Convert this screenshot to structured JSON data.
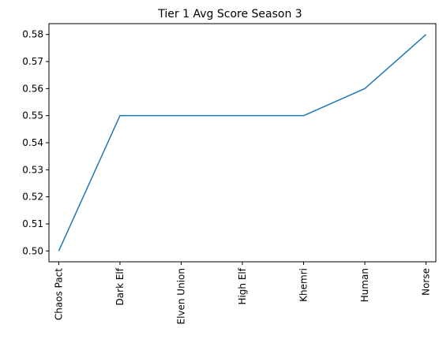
{
  "chart_data": {
    "type": "line",
    "title": "Tier 1 Avg Score Season 3",
    "xlabel": "",
    "ylabel": "",
    "categories": [
      "Chaos Pact",
      "Dark Elf",
      "Elven Union",
      "High Elf",
      "Khemri",
      "Human",
      "Norse"
    ],
    "series": [
      {
        "values": [
          0.5,
          0.55,
          0.55,
          0.55,
          0.55,
          0.56,
          0.58
        ],
        "color": "#1f77b4"
      }
    ],
    "ylim": [
      0.496,
      0.584
    ],
    "yticks": [
      "0.50",
      "0.51",
      "0.52",
      "0.53",
      "0.54",
      "0.55",
      "0.56",
      "0.57",
      "0.58"
    ],
    "grid": false,
    "legend": "none"
  }
}
